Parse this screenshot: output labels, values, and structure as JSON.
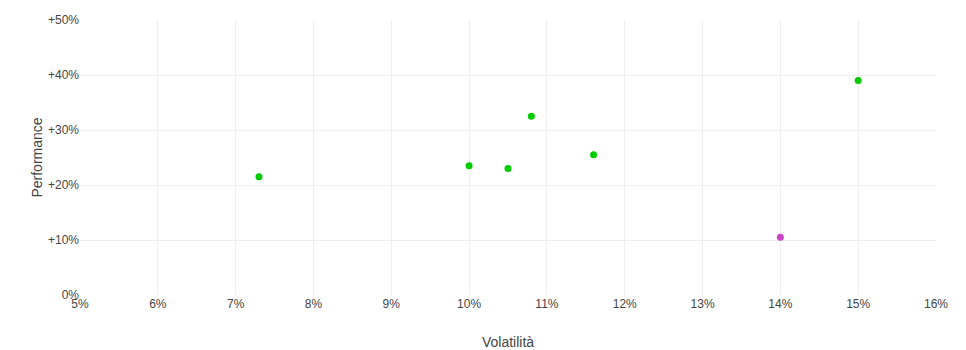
{
  "chart_data": {
    "type": "scatter",
    "xlabel": "Volatilità",
    "ylabel": "Performance",
    "xlim": [
      0.05,
      0.16
    ],
    "ylim": [
      0.0,
      0.5
    ],
    "xticks": [
      {
        "value": 0.05,
        "label": "5%"
      },
      {
        "value": 0.06,
        "label": "6%"
      },
      {
        "value": 0.07,
        "label": "7%"
      },
      {
        "value": 0.08,
        "label": "8%"
      },
      {
        "value": 0.09,
        "label": "9%"
      },
      {
        "value": 0.1,
        "label": "10%"
      },
      {
        "value": 0.11,
        "label": "11%"
      },
      {
        "value": 0.12,
        "label": "12%"
      },
      {
        "value": 0.13,
        "label": "13%"
      },
      {
        "value": 0.14,
        "label": "14%"
      },
      {
        "value": 0.15,
        "label": "15%"
      },
      {
        "value": 0.16,
        "label": "16%"
      }
    ],
    "yticks": [
      {
        "value": 0.0,
        "label": "0%"
      },
      {
        "value": 0.1,
        "label": "+10%"
      },
      {
        "value": 0.2,
        "label": "+20%"
      },
      {
        "value": 0.3,
        "label": "+30%"
      },
      {
        "value": 0.4,
        "label": "+40%"
      },
      {
        "value": 0.5,
        "label": "+50%"
      }
    ],
    "grid": true,
    "series": [
      {
        "color": "#00cc00",
        "x": [
          0.073,
          0.1,
          0.105,
          0.108,
          0.116,
          0.15
        ],
        "values": [
          0.215,
          0.235,
          0.23,
          0.325,
          0.255,
          0.39
        ]
      },
      {
        "color": "#cc44cc",
        "x": [
          0.14
        ],
        "values": [
          0.105
        ]
      }
    ]
  }
}
